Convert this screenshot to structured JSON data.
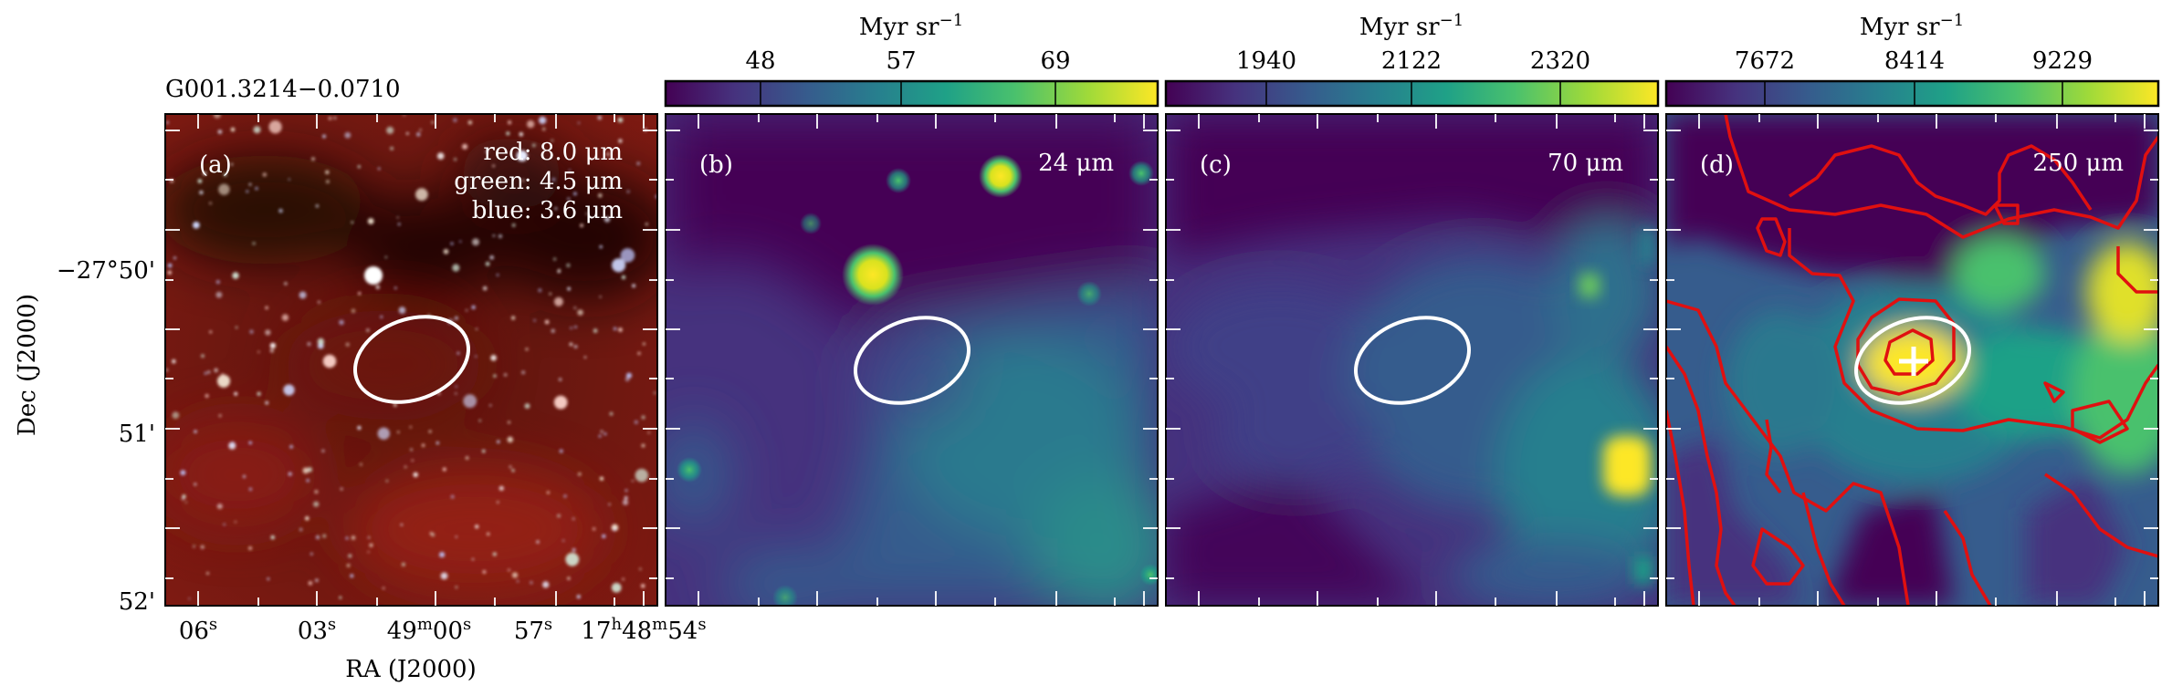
{
  "figure": {
    "source_title": "G001.3214−0.0710",
    "axes": {
      "x_label": "RA (J2000)",
      "y_label": "Dec (J2000)",
      "ra_ticks": [
        {
          "main": "06",
          "sup": "s"
        },
        {
          "main": "03",
          "sup": "s"
        },
        {
          "main": "49",
          "sup": "m",
          "main2": "00",
          "sup2": "s"
        },
        {
          "main": "57",
          "sup": "s"
        },
        {
          "main": "17",
          "sup": "h",
          "main2": "48",
          "sup2": "m",
          "main3": "54",
          "sup3": "s"
        }
      ],
      "dec_ticks": [
        "−27°50'",
        "51'",
        "52'"
      ]
    },
    "panels": [
      {
        "id": "a",
        "label": "(a)",
        "legend": [
          "red: 8.0 μm",
          "green: 4.5 μm",
          "blue: 3.6 μm"
        ],
        "colors": {
          "bg_dark": "#2a0a08",
          "bg_red": "#8a1a12"
        }
      },
      {
        "id": "b",
        "label": "(b)",
        "band": "24 μm",
        "colorbar": {
          "unit": "Myr sr",
          "unit_exp": "−1",
          "ticks": [
            "48",
            "57",
            "69"
          ]
        }
      },
      {
        "id": "c",
        "label": "(c)",
        "band": "70 μm",
        "colorbar": {
          "unit": "Myr sr",
          "unit_exp": "−1",
          "ticks": [
            "1940",
            "2122",
            "2320"
          ]
        }
      },
      {
        "id": "d",
        "label": "(d)",
        "band": "250 μm",
        "colorbar": {
          "unit": "Myr sr",
          "unit_exp": "−1",
          "ticks": [
            "7672",
            "8414",
            "9229"
          ]
        }
      }
    ],
    "colors": {
      "viridis": [
        "#440154",
        "#46327e",
        "#365c8d",
        "#277f8e",
        "#1fa187",
        "#4ac16d",
        "#a0da39",
        "#fde725"
      ],
      "contour": "#e01010",
      "ellipse": "#ffffff"
    }
  }
}
